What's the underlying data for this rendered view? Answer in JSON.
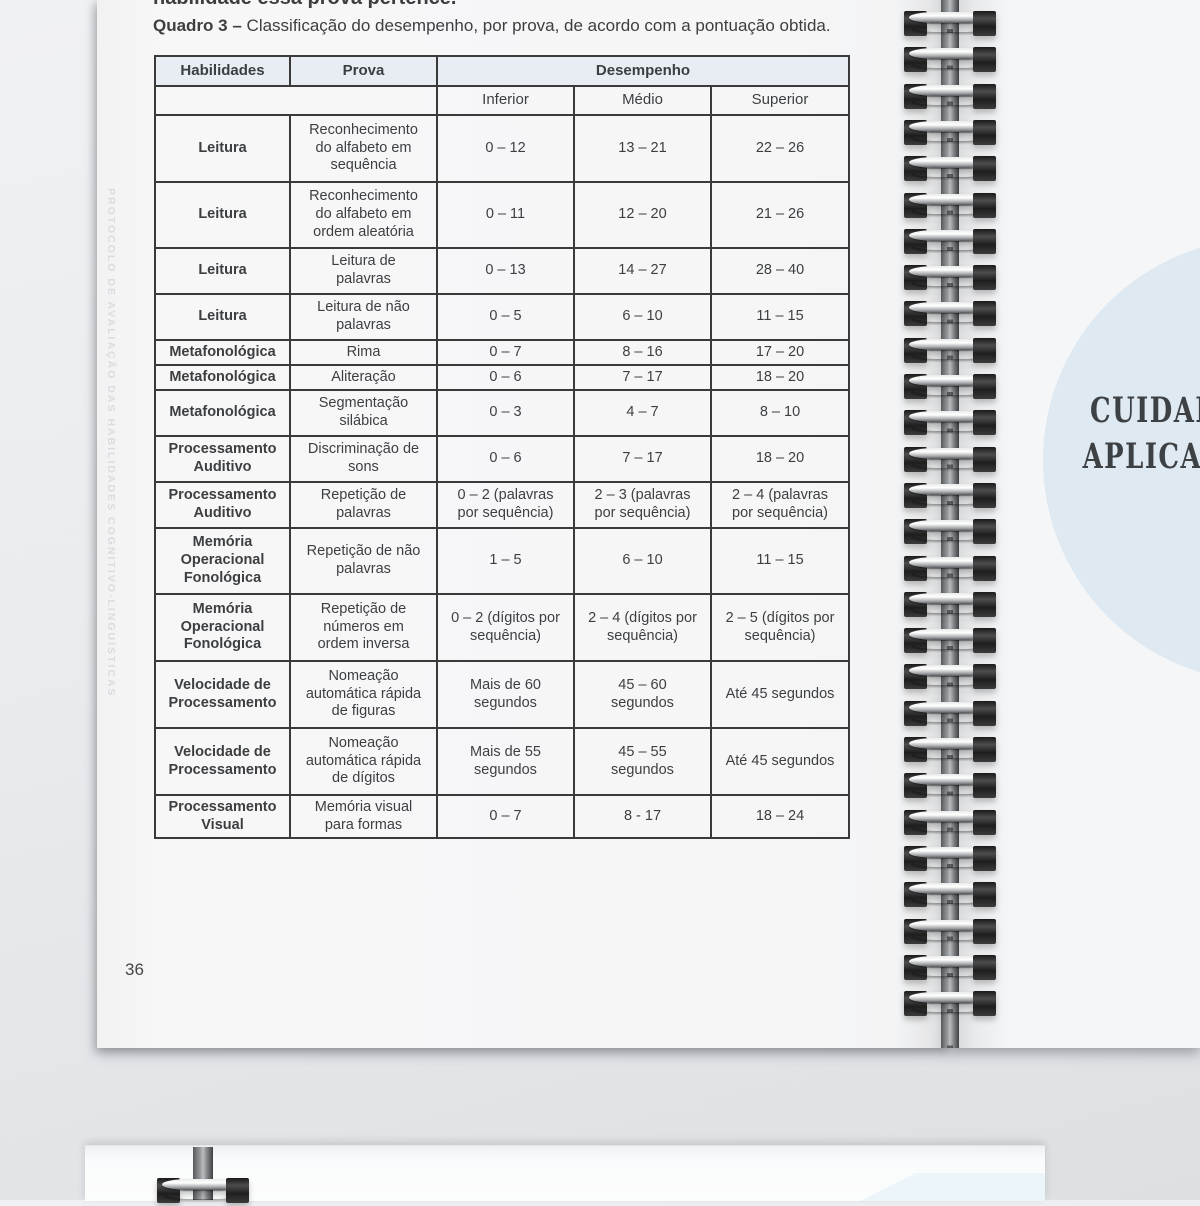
{
  "left_page": {
    "top_cut_line": "habilidade essa prova pertence.",
    "caption_label": "Quadro 3 –",
    "caption_text": " Classificação do desempenho, por prova, de acordo com a pontuação obtida.",
    "side_label": "PROTOCOLO DE AVALIAÇÃO DAS HABILIDADES COGNITIVO-LINGUÍSTICAS",
    "page_number": "36"
  },
  "table": {
    "headers": {
      "habilidades": "Habilidades",
      "prova": "Prova",
      "desempenho": "Desempenho",
      "levels": [
        "Inferior",
        "Médio",
        "Superior"
      ]
    },
    "rows": [
      {
        "habilidade": "Leitura",
        "prova": "Reconhecimento\ndo alfabeto em\nsequência",
        "inferior": "0 – 12",
        "medio": "13 – 21",
        "superior": "22 – 26"
      },
      {
        "habilidade": "Leitura",
        "prova": "Reconhecimento\ndo alfabeto em\nordem aleatória",
        "inferior": "0 – 11",
        "medio": "12 – 20",
        "superior": "21 – 26"
      },
      {
        "habilidade": "Leitura",
        "prova": "Leitura de\npalavras",
        "inferior": "0 – 13",
        "medio": "14 – 27",
        "superior": "28 – 40"
      },
      {
        "habilidade": "Leitura",
        "prova": "Leitura de não\npalavras",
        "inferior": "0 – 5",
        "medio": "6 – 10",
        "superior": "11 – 15"
      },
      {
        "habilidade": "Metafonológica",
        "prova": "Rima",
        "inferior": "0 – 7",
        "medio": "8 – 16",
        "superior": "17 – 20"
      },
      {
        "habilidade": "Metafonológica",
        "prova": "Aliteração",
        "inferior": "0 – 6",
        "medio": "7 – 17",
        "superior": "18 – 20"
      },
      {
        "habilidade": "Metafonológica",
        "prova": "Segmentação\nsilábica",
        "inferior": "0 – 3",
        "medio": "4 – 7",
        "superior": "8 – 10"
      },
      {
        "habilidade": "Processamento\nAuditivo",
        "prova": "Discriminação de\nsons",
        "inferior": "0 – 6",
        "medio": "7 – 17",
        "superior": "18 – 20"
      },
      {
        "habilidade": "Processamento\nAuditivo",
        "prova": "Repetição de\npalavras",
        "inferior": "0 – 2 (palavras\npor sequência)",
        "medio": "2 – 3 (palavras\npor sequência)",
        "superior": "2 – 4 (palavras\npor sequência)"
      },
      {
        "habilidade": "Memória\nOperacional\nFonológica",
        "prova": "Repetição de não\npalavras",
        "inferior": "1 – 5",
        "medio": "6 – 10",
        "superior": "11 – 15"
      },
      {
        "habilidade": "Memória\nOperacional\nFonológica",
        "prova": "Repetição de\nnúmeros em\nordem inversa",
        "inferior": "0 – 2 (dígitos por\nsequência)",
        "medio": "2 – 4 (dígitos por\nsequência)",
        "superior": "2 – 5 (dígitos por\nsequência)"
      },
      {
        "habilidade": "Velocidade de\nProcessamento",
        "prova": "Nomeação\nautomática rápida\nde figuras",
        "inferior": "Mais de 60\nsegundos",
        "medio": "45 – 60\nsegundos",
        "superior": "Até 45 segundos"
      },
      {
        "habilidade": "Velocidade de\nProcessamento",
        "prova": "Nomeação\nautomática rápida\nde dígitos",
        "inferior": "Mais de 55\nsegundos",
        "medio": "45 – 55\nsegundos",
        "superior": "Até 45 segundos"
      },
      {
        "habilidade": "Processamento\nVisual",
        "prova": "Memória visual\npara formas",
        "inferior": "0 – 7",
        "medio": "8 - 17",
        "superior": "18 – 24"
      }
    ]
  },
  "right_page": {
    "title_line1": "CUIDAD",
    "title_line2": "APLICA"
  },
  "colors": {
    "accent_circle": "#dee9f1",
    "header_bg": "#e7edf2",
    "table_border": "#3a3a3a"
  }
}
